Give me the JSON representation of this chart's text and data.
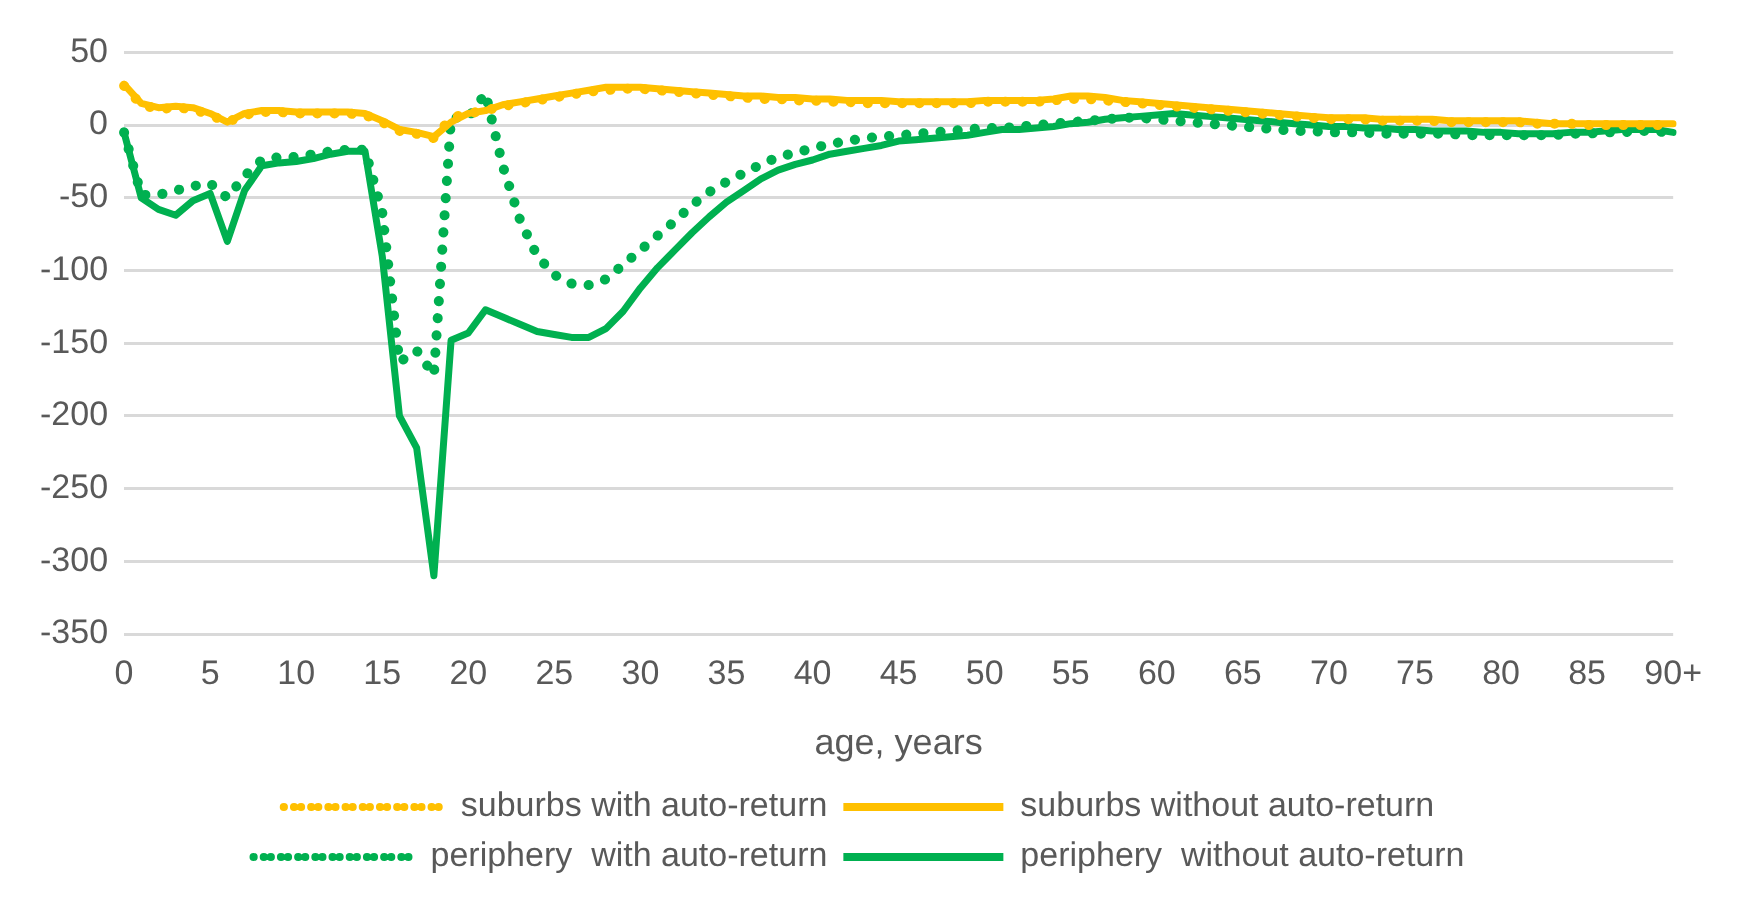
{
  "chart_data": {
    "type": "line",
    "xlabel": "age, years",
    "categories": [
      "0",
      null,
      null,
      null,
      null,
      "5",
      null,
      null,
      null,
      null,
      "10",
      null,
      null,
      null,
      null,
      "15",
      null,
      null,
      null,
      null,
      "20",
      null,
      null,
      null,
      null,
      "25",
      null,
      null,
      null,
      null,
      "30",
      null,
      null,
      null,
      null,
      "35",
      null,
      null,
      null,
      null,
      "40",
      null,
      null,
      null,
      null,
      "45",
      null,
      null,
      null,
      null,
      "50",
      null,
      null,
      null,
      null,
      "55",
      null,
      null,
      null,
      null,
      "60",
      null,
      null,
      null,
      null,
      "65",
      null,
      null,
      null,
      null,
      "70",
      null,
      null,
      null,
      null,
      "75",
      null,
      null,
      null,
      null,
      "80",
      null,
      null,
      null,
      null,
      "85",
      null,
      null,
      null,
      null,
      "90+"
    ],
    "series": [
      {
        "name": "suburbs with auto-return",
        "color": "#ffc000",
        "line_style": "dotted",
        "values": [
          27,
          14,
          11,
          12,
          11,
          7,
          2,
          7,
          9,
          9,
          8,
          8,
          8,
          8,
          7,
          2,
          -4,
          -6,
          -9,
          5,
          8,
          10,
          13,
          15,
          17,
          19,
          21,
          23,
          24,
          25,
          25,
          24,
          23,
          22,
          21,
          20,
          19,
          18,
          18,
          17,
          17,
          16,
          16,
          15,
          15,
          15,
          15,
          15,
          15,
          15,
          16,
          16,
          16,
          16,
          17,
          18,
          18,
          17,
          16,
          15,
          14,
          13,
          12,
          11,
          10,
          9,
          8,
          7,
          6,
          5,
          4,
          4,
          4,
          3,
          3,
          3,
          3,
          2,
          2,
          2,
          2,
          2,
          1,
          1,
          1,
          0,
          0,
          0,
          0,
          0,
          0
        ]
      },
      {
        "name": "suburbs without auto-return",
        "color": "#ffc000",
        "line_style": "solid",
        "values": [
          28,
          15,
          12,
          13,
          12,
          8,
          2,
          8,
          10,
          10,
          9,
          9,
          9,
          9,
          8,
          3,
          -3,
          -5,
          -8,
          2,
          8,
          10,
          14,
          16,
          18,
          20,
          22,
          24,
          26,
          26,
          26,
          25,
          24,
          23,
          22,
          21,
          20,
          20,
          19,
          19,
          18,
          18,
          17,
          17,
          17,
          16,
          16,
          16,
          16,
          16,
          17,
          17,
          17,
          17,
          18,
          20,
          20,
          19,
          17,
          16,
          15,
          14,
          13,
          12,
          11,
          10,
          9,
          8,
          7,
          6,
          5,
          5,
          5,
          4,
          4,
          4,
          4,
          3,
          3,
          3,
          3,
          3,
          2,
          1,
          1,
          1,
          1,
          1,
          1,
          1,
          1
        ]
      },
      {
        "name": "periphery  with auto-return",
        "color": "#00b050",
        "line_style": "dotted",
        "values": [
          -5,
          -48,
          -48,
          -45,
          -42,
          -40,
          -50,
          -35,
          -24,
          -22,
          -22,
          -20,
          -18,
          -17,
          -17,
          -60,
          -163,
          -155,
          -172,
          5,
          5,
          22,
          -28,
          -65,
          -90,
          -103,
          -109,
          -110,
          -106,
          -96,
          -86,
          -76,
          -66,
          -55,
          -46,
          -39,
          -33,
          -27,
          -22,
          -19,
          -16,
          -13,
          -11,
          -9,
          -8,
          -7,
          -6,
          -5,
          -4,
          -3,
          -2,
          -2,
          -1,
          0,
          1,
          2,
          3,
          4,
          5,
          5,
          4,
          3,
          2,
          1,
          0,
          -1,
          -2,
          -3,
          -4,
          -4,
          -5,
          -5,
          -5,
          -6,
          -6,
          -6,
          -6,
          -6,
          -7,
          -7,
          -7,
          -7,
          -7,
          -7,
          -6,
          -6,
          -5,
          -5,
          -4,
          -4,
          -6
        ]
      },
      {
        "name": "periphery  without auto-return",
        "color": "#00b050",
        "line_style": "solid",
        "values": [
          -5,
          -50,
          -58,
          -62,
          -52,
          -47,
          -80,
          -45,
          -28,
          -26,
          -25,
          -23,
          -20,
          -18,
          -18,
          -90,
          -200,
          -222,
          -310,
          -148,
          -143,
          -127,
          -132,
          -137,
          -142,
          -144,
          -146,
          -146,
          -140,
          -128,
          -112,
          -98,
          -86,
          -74,
          -63,
          -53,
          -45,
          -37,
          -31,
          -27,
          -24,
          -20,
          -18,
          -16,
          -14,
          -11,
          -10,
          -9,
          -8,
          -7,
          -5,
          -3,
          -3,
          -2,
          -1,
          1,
          2,
          4,
          5,
          6,
          7,
          8,
          7,
          6,
          5,
          4,
          3,
          2,
          1,
          0,
          -1,
          -1,
          -2,
          -2,
          -3,
          -3,
          -4,
          -4,
          -4,
          -5,
          -5,
          -6,
          -6,
          -6,
          -5,
          -5,
          -4,
          -3,
          -3,
          -3,
          -5
        ]
      }
    ],
    "ylim": [
      -350,
      50
    ],
    "yticks": [
      -350,
      -300,
      -250,
      -200,
      -150,
      -100,
      -50,
      0,
      50
    ],
    "grid": "y",
    "legend": "bottom"
  }
}
